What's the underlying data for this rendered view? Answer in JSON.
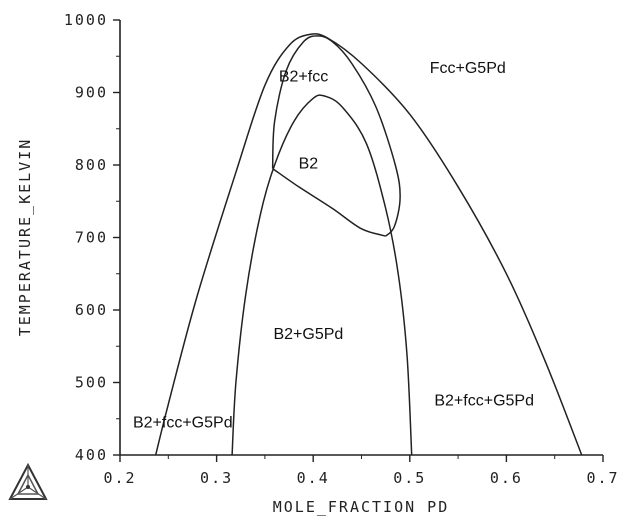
{
  "chart_data": {
    "type": "line",
    "title": "",
    "xlabel": "MOLE_FRACTION PD",
    "ylabel": "TEMPERATURE_KELVIN",
    "xlim": [
      0.2,
      0.7
    ],
    "ylim": [
      400,
      1000
    ],
    "x_ticks": [
      "0.2",
      "0.3",
      "0.4",
      "0.5",
      "0.6",
      "0.7"
    ],
    "y_ticks": [
      "400",
      "500",
      "600",
      "700",
      "800",
      "900",
      "1000"
    ],
    "grid": false,
    "line_color": "#222222",
    "series": [
      {
        "points": [
          [
            0.237,
            400
          ],
          [
            0.25,
            470
          ],
          [
            0.28,
            620
          ],
          [
            0.32,
            790
          ],
          [
            0.35,
            910
          ],
          [
            0.375,
            965
          ],
          [
            0.396,
            980
          ],
          [
            0.415,
            975
          ],
          [
            0.45,
            940
          ],
          [
            0.5,
            870
          ],
          [
            0.55,
            770
          ],
          [
            0.6,
            650
          ],
          [
            0.64,
            530
          ],
          [
            0.678,
            400
          ]
        ]
      },
      {
        "points": [
          [
            0.316,
            400
          ],
          [
            0.32,
            500
          ],
          [
            0.33,
            620
          ],
          [
            0.345,
            730
          ],
          [
            0.36,
            800
          ],
          [
            0.38,
            860
          ],
          [
            0.4,
            892
          ],
          [
            0.412,
            895
          ],
          [
            0.43,
            880
          ],
          [
            0.455,
            830
          ],
          [
            0.475,
            740
          ],
          [
            0.488,
            650
          ],
          [
            0.497,
            540
          ],
          [
            0.502,
            400
          ]
        ]
      },
      {
        "points": [
          [
            0.358,
            795
          ],
          [
            0.36,
            860
          ],
          [
            0.372,
            930
          ],
          [
            0.39,
            970
          ],
          [
            0.405,
            978
          ],
          [
            0.42,
            970
          ],
          [
            0.44,
            940
          ],
          [
            0.465,
            880
          ],
          [
            0.485,
            800
          ],
          [
            0.49,
            755
          ],
          [
            0.484,
            715
          ],
          [
            0.475,
            702
          ]
        ]
      },
      {
        "points": [
          [
            0.358,
            795
          ],
          [
            0.385,
            770
          ],
          [
            0.42,
            740
          ],
          [
            0.45,
            712
          ],
          [
            0.475,
            702
          ]
        ]
      }
    ],
    "annotations": [
      {
        "text": "Fcc+G5Pd",
        "x": 0.56,
        "y": 927
      },
      {
        "text": "B2+fcc",
        "x": 0.39,
        "y": 915
      },
      {
        "text": "B2",
        "x": 0.395,
        "y": 795
      },
      {
        "text": "B2+G5Pd",
        "x": 0.395,
        "y": 560
      },
      {
        "text": "B2+fcc+G5Pd",
        "x": 0.265,
        "y": 438
      },
      {
        "text": "B2+fcc+G5Pd",
        "x": 0.577,
        "y": 468
      }
    ]
  }
}
